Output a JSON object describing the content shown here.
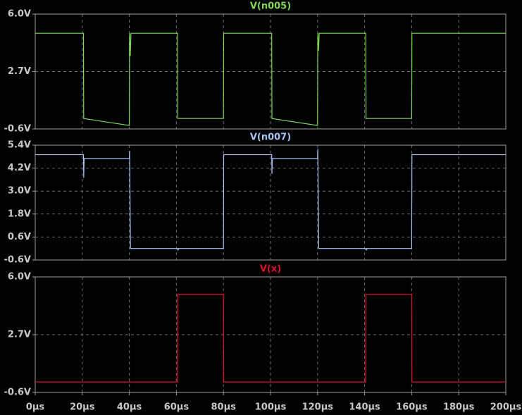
{
  "chart_data": [
    {
      "type": "line",
      "x": [
        0,
        20.5,
        20.6,
        40,
        40.1,
        40.4,
        40.7,
        60.5,
        60.6,
        80,
        80.1,
        100.5,
        100.6,
        120,
        120.1,
        120.4,
        120.7,
        140.5,
        140.6,
        160,
        160.1,
        200
      ],
      "series": [
        {
          "name": "V(n005)",
          "color": "#7ed957",
          "values": [
            4.9,
            4.9,
            0,
            -0.4,
            4.9,
            3.6,
            4.9,
            4.9,
            0,
            0,
            4.9,
            4.9,
            0,
            -0.4,
            4.9,
            3.9,
            4.9,
            4.9,
            0,
            0,
            4.9,
            4.9
          ]
        }
      ],
      "xlim": [
        0,
        200
      ],
      "ylim": [
        -0.6,
        6.0
      ],
      "yticks": [
        {
          "value": -0.6,
          "label": "-0.6V"
        },
        {
          "value": 2.7,
          "label": "2.7V"
        },
        {
          "value": 6.0,
          "label": "6.0V"
        }
      ],
      "grid": true
    },
    {
      "type": "line",
      "x": [
        0,
        20.5,
        20.6,
        20.8,
        40,
        40.1,
        40.5,
        40.6,
        60.5,
        60.7,
        60.9,
        80,
        80.1,
        100.5,
        100.6,
        100.8,
        120,
        120.1,
        120.5,
        120.6,
        140.5,
        140.7,
        140.9,
        160,
        160.1,
        200
      ],
      "series": [
        {
          "name": "V(n007)",
          "color": "#a4c4f4",
          "values": [
            4.9,
            4.9,
            3.7,
            4.7,
            4.7,
            5.1,
            0,
            0,
            0,
            -0.1,
            0,
            0,
            4.9,
            4.9,
            3.9,
            4.7,
            4.7,
            5.2,
            0,
            0,
            0,
            -0.1,
            0,
            0,
            4.9,
            4.9
          ]
        }
      ],
      "xlim": [
        0,
        200
      ],
      "ylim": [
        -0.6,
        5.4
      ],
      "yticks": [
        {
          "value": -0.6,
          "label": "-0.6V"
        },
        {
          "value": 0.6,
          "label": "0.6V"
        },
        {
          "value": 1.8,
          "label": "1.8V"
        },
        {
          "value": 3.0,
          "label": "3.0V"
        },
        {
          "value": 4.2,
          "label": "4.2V"
        },
        {
          "value": 5.4,
          "label": "5.4V"
        }
      ],
      "grid": true
    },
    {
      "type": "line",
      "x": [
        0,
        60.5,
        60.6,
        80,
        80.1,
        140.5,
        140.6,
        160,
        160.1,
        200
      ],
      "series": [
        {
          "name": "V(x)",
          "color": "#e0102a",
          "values": [
            0,
            0,
            5,
            5,
            0,
            0,
            5,
            5,
            0,
            0
          ]
        }
      ],
      "xlim": [
        0,
        200
      ],
      "ylim": [
        -0.6,
        6.0
      ],
      "yticks": [
        {
          "value": -0.6,
          "label": "-0.6V"
        },
        {
          "value": 2.7,
          "label": "2.7V"
        },
        {
          "value": 6.0,
          "label": "6.0V"
        }
      ],
      "xticks": [
        {
          "value": 0,
          "label": "0µs"
        },
        {
          "value": 20,
          "label": "20µs"
        },
        {
          "value": 40,
          "label": "40µs"
        },
        {
          "value": 60,
          "label": "60µs"
        },
        {
          "value": 80,
          "label": "80µs"
        },
        {
          "value": 100,
          "label": "100µs"
        },
        {
          "value": 120,
          "label": "120µs"
        },
        {
          "value": 140,
          "label": "140µs"
        },
        {
          "value": 160,
          "label": "160µs"
        },
        {
          "value": 180,
          "label": "180µs"
        },
        {
          "value": 200,
          "label": "200µs"
        }
      ],
      "grid": true
    }
  ]
}
